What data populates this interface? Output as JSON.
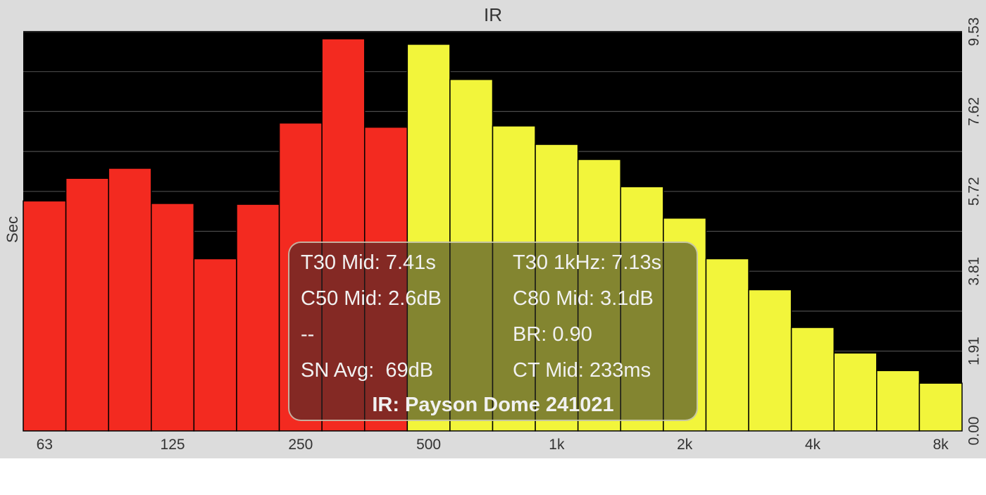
{
  "chart_data": {
    "type": "bar",
    "title": "IR",
    "ylabel": "Sec",
    "ylim": [
      0,
      9.53
    ],
    "y_ticks": [
      "0.00",
      "1.91",
      "3.81",
      "5.72",
      "7.62",
      "9.53"
    ],
    "x_tick_labels": [
      "63",
      "125",
      "250",
      "500",
      "1k",
      "2k",
      "4k",
      "8k"
    ],
    "bands": 22,
    "values": [
      5.49,
      6.03,
      6.27,
      5.43,
      4.11,
      5.41,
      7.35,
      9.36,
      7.25,
      9.23,
      8.39,
      7.28,
      6.84,
      6.48,
      5.83,
      5.08,
      4.11,
      3.37,
      2.47,
      1.86,
      1.44,
      1.14
    ],
    "series_colors": {
      "low": "#f32a20",
      "high": "#f2f53b"
    },
    "split_index": 9,
    "grid": true,
    "background": "#000000"
  },
  "overlay": {
    "t30_mid": "T30 Mid: 7.41s",
    "t30_1k": "T30 1kHz: 7.13s",
    "c50_mid": "C50 Mid: 2.6dB",
    "c80_mid": "C80 Mid: 3.1dB",
    "placeholder": "--",
    "br": "BR: 0.90",
    "sn_avg": "SN Avg:  69dB",
    "ct_mid": "CT Mid: 233ms",
    "ir_name": "IR: Payson Dome 241021"
  }
}
